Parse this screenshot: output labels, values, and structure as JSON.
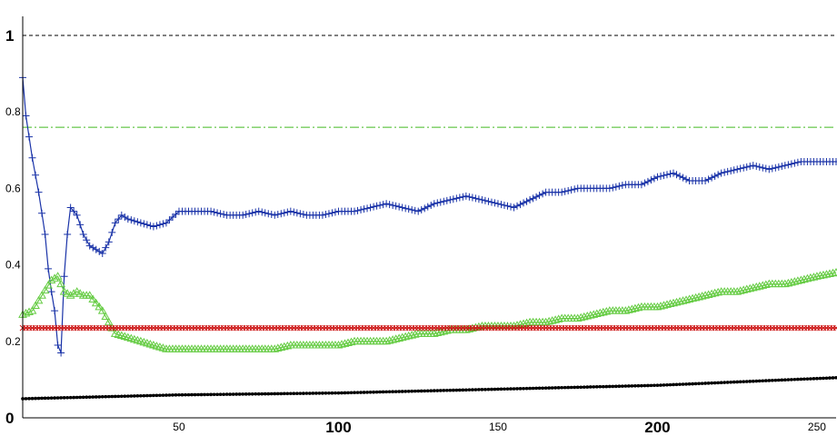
{
  "chart_data": {
    "type": "line",
    "x_ticks": [
      {
        "value": 50,
        "label": "50",
        "major": false
      },
      {
        "value": 100,
        "label": "100",
        "major": true
      },
      {
        "value": 150,
        "label": "150",
        "major": false
      },
      {
        "value": 200,
        "label": "200",
        "major": true
      },
      {
        "value": 250,
        "label": "250",
        "major": false
      }
    ],
    "y_ticks": [
      {
        "value": 0,
        "label": "0",
        "major": true
      },
      {
        "value": 0.2,
        "label": "0.2",
        "major": false
      },
      {
        "value": 0.4,
        "label": "0.4",
        "major": false
      },
      {
        "value": 0.6,
        "label": "0.6",
        "major": false
      },
      {
        "value": 0.8,
        "label": "0.8",
        "major": false
      },
      {
        "value": 1,
        "label": "1",
        "major": true
      }
    ],
    "xlim": [
      1,
      256
    ],
    "ylim": [
      0,
      1.05
    ],
    "grid": false,
    "legend": "none",
    "reference_lines": [
      {
        "y": 1.0,
        "color": "#000000",
        "style": "dashed"
      },
      {
        "y": 0.76,
        "color": "#44bb22",
        "style": "dashdot"
      }
    ],
    "series": [
      {
        "color": "#1a33a8",
        "marker": "plus",
        "points": [
          [
            1,
            0.89
          ],
          [
            2,
            0.79
          ],
          [
            4,
            0.68
          ],
          [
            6,
            0.59
          ],
          [
            8,
            0.48
          ],
          [
            9,
            0.39
          ],
          [
            10,
            0.33
          ],
          [
            11,
            0.28
          ],
          [
            12,
            0.19
          ],
          [
            13,
            0.17
          ],
          [
            14,
            0.37
          ],
          [
            15,
            0.48
          ],
          [
            16,
            0.55
          ],
          [
            18,
            0.53
          ],
          [
            20,
            0.48
          ],
          [
            22,
            0.45
          ],
          [
            24,
            0.44
          ],
          [
            26,
            0.43
          ],
          [
            28,
            0.46
          ],
          [
            30,
            0.51
          ],
          [
            32,
            0.53
          ],
          [
            34,
            0.52
          ],
          [
            38,
            0.51
          ],
          [
            42,
            0.5
          ],
          [
            46,
            0.51
          ],
          [
            50,
            0.54
          ],
          [
            55,
            0.54
          ],
          [
            60,
            0.54
          ],
          [
            65,
            0.53
          ],
          [
            70,
            0.53
          ],
          [
            75,
            0.54
          ],
          [
            80,
            0.53
          ],
          [
            85,
            0.54
          ],
          [
            90,
            0.53
          ],
          [
            95,
            0.53
          ],
          [
            100,
            0.54
          ],
          [
            105,
            0.54
          ],
          [
            110,
            0.55
          ],
          [
            115,
            0.56
          ],
          [
            120,
            0.55
          ],
          [
            125,
            0.54
          ],
          [
            130,
            0.56
          ],
          [
            135,
            0.57
          ],
          [
            140,
            0.58
          ],
          [
            145,
            0.57
          ],
          [
            150,
            0.56
          ],
          [
            155,
            0.55
          ],
          [
            160,
            0.57
          ],
          [
            165,
            0.59
          ],
          [
            170,
            0.59
          ],
          [
            175,
            0.6
          ],
          [
            180,
            0.6
          ],
          [
            185,
            0.6
          ],
          [
            190,
            0.61
          ],
          [
            195,
            0.61
          ],
          [
            200,
            0.63
          ],
          [
            205,
            0.64
          ],
          [
            210,
            0.62
          ],
          [
            215,
            0.62
          ],
          [
            220,
            0.64
          ],
          [
            225,
            0.65
          ],
          [
            230,
            0.66
          ],
          [
            235,
            0.65
          ],
          [
            240,
            0.66
          ],
          [
            245,
            0.67
          ],
          [
            250,
            0.67
          ],
          [
            256,
            0.67
          ]
        ]
      },
      {
        "color": "#66cc44",
        "marker": "triangle",
        "points": [
          [
            1,
            0.27
          ],
          [
            4,
            0.28
          ],
          [
            7,
            0.32
          ],
          [
            10,
            0.36
          ],
          [
            12,
            0.37
          ],
          [
            14,
            0.33
          ],
          [
            16,
            0.32
          ],
          [
            18,
            0.33
          ],
          [
            20,
            0.32
          ],
          [
            22,
            0.32
          ],
          [
            24,
            0.3
          ],
          [
            26,
            0.28
          ],
          [
            28,
            0.25
          ],
          [
            30,
            0.22
          ],
          [
            34,
            0.21
          ],
          [
            38,
            0.2
          ],
          [
            42,
            0.19
          ],
          [
            46,
            0.18
          ],
          [
            50,
            0.18
          ],
          [
            55,
            0.18
          ],
          [
            60,
            0.18
          ],
          [
            65,
            0.18
          ],
          [
            70,
            0.18
          ],
          [
            75,
            0.18
          ],
          [
            80,
            0.18
          ],
          [
            85,
            0.19
          ],
          [
            90,
            0.19
          ],
          [
            95,
            0.19
          ],
          [
            100,
            0.19
          ],
          [
            105,
            0.2
          ],
          [
            110,
            0.2
          ],
          [
            115,
            0.2
          ],
          [
            120,
            0.21
          ],
          [
            125,
            0.22
          ],
          [
            130,
            0.22
          ],
          [
            135,
            0.23
          ],
          [
            140,
            0.23
          ],
          [
            145,
            0.24
          ],
          [
            150,
            0.24
          ],
          [
            155,
            0.24
          ],
          [
            160,
            0.25
          ],
          [
            165,
            0.25
          ],
          [
            170,
            0.26
          ],
          [
            175,
            0.26
          ],
          [
            180,
            0.27
          ],
          [
            185,
            0.28
          ],
          [
            190,
            0.28
          ],
          [
            195,
            0.29
          ],
          [
            200,
            0.29
          ],
          [
            205,
            0.3
          ],
          [
            210,
            0.31
          ],
          [
            215,
            0.32
          ],
          [
            220,
            0.33
          ],
          [
            225,
            0.33
          ],
          [
            230,
            0.34
          ],
          [
            235,
            0.35
          ],
          [
            240,
            0.35
          ],
          [
            245,
            0.36
          ],
          [
            250,
            0.37
          ],
          [
            256,
            0.38
          ]
        ]
      },
      {
        "color": "#cc1111",
        "marker": "x",
        "points": [
          [
            1,
            0.235
          ],
          [
            256,
            0.235
          ]
        ]
      },
      {
        "color": "#000000",
        "marker": "dot",
        "points": [
          [
            1,
            0.05
          ],
          [
            50,
            0.06
          ],
          [
            100,
            0.065
          ],
          [
            150,
            0.075
          ],
          [
            200,
            0.085
          ],
          [
            256,
            0.105
          ]
        ]
      }
    ]
  }
}
